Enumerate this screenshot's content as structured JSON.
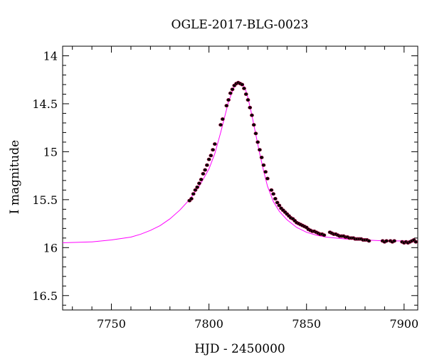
{
  "chart_data": {
    "type": "scatter",
    "title": "OGLE-2017-BLG-0023",
    "xlabel": "HJD - 2450000",
    "ylabel": "I magnitude",
    "xlim": [
      7725,
      7907
    ],
    "ylim": [
      16.65,
      13.9
    ],
    "y_inverted": true,
    "x_ticks": [
      7750,
      7800,
      7850,
      7900
    ],
    "y_ticks": [
      14,
      14.5,
      15,
      15.5,
      16,
      16.5
    ],
    "x_tick_labels": [
      "7750",
      "7800",
      "7850",
      "7900"
    ],
    "y_tick_labels": [
      "14",
      "14.5",
      "15",
      "15.5",
      "16",
      "16.5"
    ],
    "grid": false,
    "colors": {
      "model": "#ff00ff",
      "points": "#000000",
      "point_outline": "#a0003c"
    },
    "series": [
      {
        "kind": "model-curve",
        "x": [
          7725,
          7740,
          7750,
          7760,
          7765,
          7770,
          7775,
          7780,
          7785,
          7790,
          7795,
          7800,
          7803,
          7806,
          7808,
          7810,
          7812,
          7813,
          7814,
          7815,
          7816,
          7817,
          7818,
          7819,
          7820,
          7822,
          7824,
          7826,
          7828,
          7830,
          7833,
          7836,
          7840,
          7845,
          7850,
          7855,
          7860,
          7870,
          7880,
          7890,
          7900,
          7907
        ],
        "y": [
          15.95,
          15.94,
          15.92,
          15.89,
          15.86,
          15.82,
          15.77,
          15.7,
          15.61,
          15.5,
          15.36,
          15.18,
          15.02,
          14.8,
          14.64,
          14.48,
          14.37,
          14.32,
          14.29,
          14.28,
          14.28,
          14.29,
          14.32,
          14.37,
          14.44,
          14.62,
          14.82,
          15.02,
          15.2,
          15.36,
          15.52,
          15.62,
          15.71,
          15.79,
          15.84,
          15.87,
          15.89,
          15.91,
          15.92,
          15.93,
          15.93,
          15.94
        ]
      },
      {
        "kind": "observations",
        "x": [
          7790,
          7791,
          7792,
          7793,
          7794,
          7795,
          7796,
          7797,
          7798,
          7799,
          7800,
          7801,
          7802,
          7803,
          7806,
          7807,
          7809,
          7810,
          7811,
          7812,
          7813,
          7814,
          7815,
          7816,
          7817,
          7818,
          7819,
          7820,
          7821,
          7822,
          7823,
          7824,
          7825,
          7826,
          7827,
          7828,
          7829,
          7830,
          7832,
          7833,
          7834,
          7835,
          7836,
          7837,
          7838,
          7839,
          7840,
          7841,
          7842,
          7843,
          7844,
          7845,
          7846,
          7847,
          7848,
          7849,
          7850,
          7851,
          7852,
          7853,
          7854,
          7855,
          7856,
          7857,
          7858,
          7859,
          7862,
          7863,
          7864,
          7865,
          7866,
          7867,
          7868,
          7869,
          7870,
          7871,
          7872,
          7873,
          7874,
          7875,
          7876,
          7877,
          7878,
          7879,
          7880,
          7881,
          7882,
          7889,
          7890,
          7891,
          7893,
          7894,
          7895,
          7899,
          7900,
          7901,
          7902,
          7903,
          7904,
          7905,
          7906
        ],
        "y": [
          15.51,
          15.49,
          15.44,
          15.4,
          15.37,
          15.33,
          15.29,
          15.23,
          15.19,
          15.14,
          15.08,
          15.04,
          14.98,
          14.92,
          14.72,
          14.66,
          14.52,
          14.46,
          14.39,
          14.35,
          14.31,
          14.29,
          14.28,
          14.29,
          14.3,
          14.34,
          14.4,
          14.46,
          14.54,
          14.62,
          14.72,
          14.81,
          14.9,
          14.98,
          15.06,
          15.14,
          15.21,
          15.28,
          15.4,
          15.44,
          15.49,
          15.53,
          15.56,
          15.59,
          15.61,
          15.63,
          15.65,
          15.67,
          15.69,
          15.7,
          15.72,
          15.74,
          15.75,
          15.76,
          15.77,
          15.78,
          15.79,
          15.81,
          15.82,
          15.83,
          15.83,
          15.84,
          15.85,
          15.86,
          15.86,
          15.87,
          15.84,
          15.85,
          15.86,
          15.86,
          15.87,
          15.88,
          15.88,
          15.88,
          15.89,
          15.89,
          15.9,
          15.9,
          15.9,
          15.91,
          15.91,
          15.91,
          15.91,
          15.92,
          15.92,
          15.92,
          15.93,
          15.93,
          15.94,
          15.93,
          15.93,
          15.94,
          15.93,
          15.94,
          15.95,
          15.94,
          15.95,
          15.94,
          15.93,
          15.92,
          15.94
        ]
      }
    ]
  }
}
